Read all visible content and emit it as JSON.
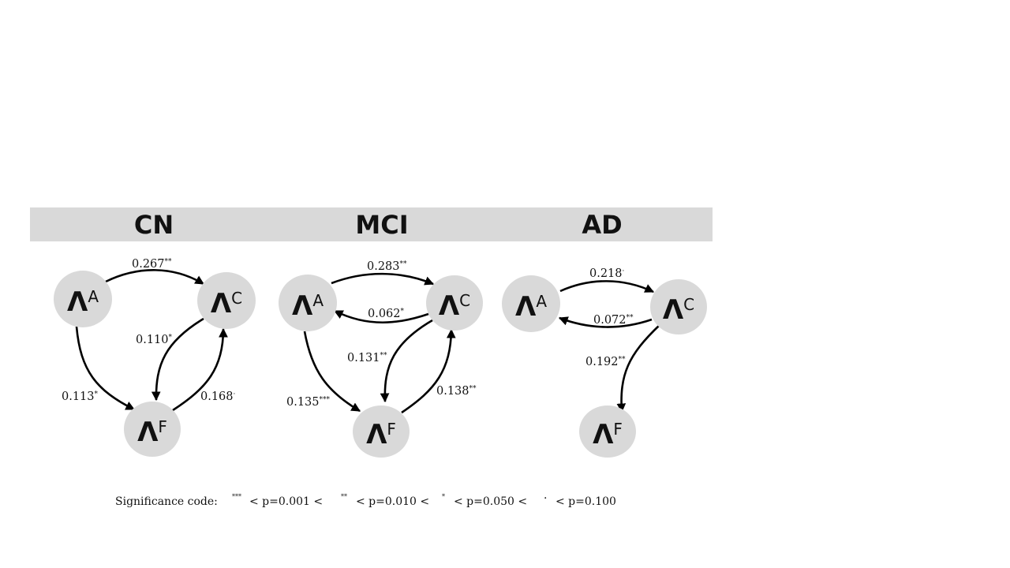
{
  "headers": {
    "cn": "CN",
    "mci": "MCI",
    "ad": "AD"
  },
  "node_symbol": "Λ",
  "node_subscripts": {
    "a": "A",
    "c": "C",
    "f": "F"
  },
  "panels": {
    "cn": {
      "a_to_c": {
        "value": "0.267",
        "sig": "**"
      },
      "c_to_f": {
        "value": "0.110",
        "sig": "*"
      },
      "a_to_f": {
        "value": "0.113",
        "sig": "*"
      },
      "f_to_c": {
        "value": "0.168",
        "sig": "·"
      }
    },
    "mci": {
      "a_to_c": {
        "value": "0.283",
        "sig": "**"
      },
      "c_to_a": {
        "value": "0.062",
        "sig": "*"
      },
      "c_to_f": {
        "value": "0.131",
        "sig": "**"
      },
      "a_to_f": {
        "value": "0.135",
        "sig": "***"
      },
      "f_to_c": {
        "value": "0.138",
        "sig": "**"
      }
    },
    "ad": {
      "a_to_c": {
        "value": "0.218",
        "sig": "·"
      },
      "c_to_a": {
        "value": "0.072",
        "sig": "**"
      },
      "c_to_f": {
        "value": "0.192",
        "sig": "**"
      }
    }
  },
  "legend": {
    "label": "Significance code:",
    "sig1": "***",
    "thr1": "< p=0.001 <",
    "sig2": "**",
    "thr2": "< p=0.010 <",
    "sig3": "*",
    "thr3": "< p=0.050 <",
    "sig4": "·",
    "thr4": "< p=0.100"
  }
}
